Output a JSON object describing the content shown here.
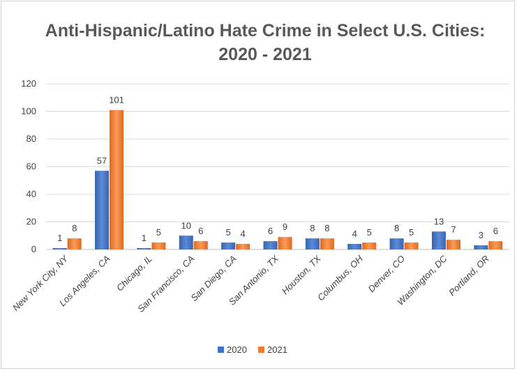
{
  "chart_data": {
    "type": "bar",
    "title_lines": [
      "Anti-Hispanic/Latino Hate Crime in Select U.S. Cities:",
      "2020 - 2021"
    ],
    "xlabel": "",
    "ylabel": "",
    "ylim": [
      0,
      120
    ],
    "yticks": [
      "0",
      "20",
      "40",
      "60",
      "80",
      "100",
      "120"
    ],
    "categories": [
      "New York City, NY",
      "Los Angeles, CA",
      "Chicago, IL",
      "San Francisco, CA",
      "San Diego, CA",
      "San Antonio, TX",
      "Houston, TX",
      "Columbus, OH",
      "Denver, CO",
      "Washington, DC",
      "Portland, OR"
    ],
    "series": [
      {
        "name": "2020",
        "color": "#4472C4",
        "values": [
          1,
          57,
          1,
          10,
          5,
          6,
          8,
          4,
          8,
          13,
          3
        ]
      },
      {
        "name": "2021",
        "color": "#ED7D31",
        "values": [
          8,
          101,
          5,
          6,
          4,
          9,
          8,
          5,
          5,
          7,
          6
        ]
      }
    ],
    "grid": true,
    "legend_position": "bottom"
  }
}
